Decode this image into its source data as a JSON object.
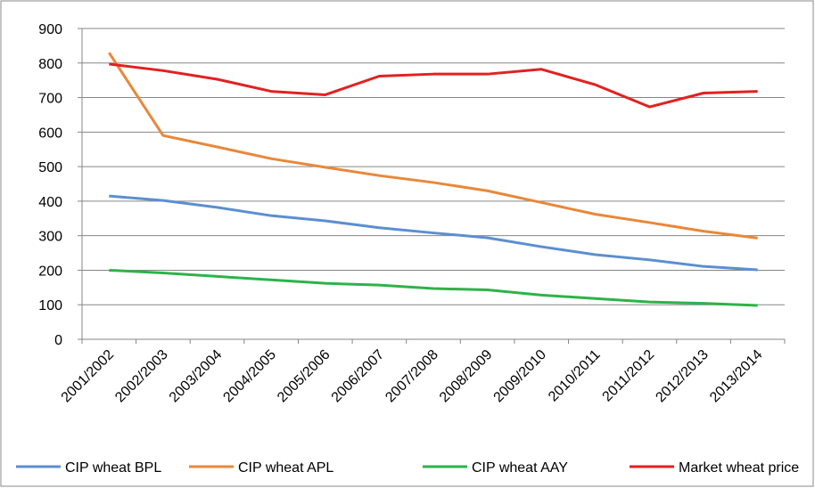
{
  "chart_data": {
    "type": "line",
    "categories": [
      "2001/2002",
      "2002/2003",
      "2003/2004",
      "2004/2005",
      "2005/2006",
      "2006/2007",
      "2007/2008",
      "2008/2009",
      "2009/2010",
      "2010/2011",
      "2011/2012",
      "2012/2013",
      "2013/2014"
    ],
    "series": [
      {
        "name": "CIP wheat BPL",
        "color": "#5b8fd0",
        "values": [
          415,
          402,
          382,
          358,
          343,
          323,
          308,
          294,
          268,
          245,
          230,
          211,
          201
        ]
      },
      {
        "name": "CIP wheat APL",
        "color": "#e8883a",
        "values": [
          830,
          590,
          557,
          523,
          498,
          474,
          454,
          430,
          396,
          362,
          338,
          313,
          293
        ]
      },
      {
        "name": "CIP wheat AAY",
        "color": "#2db34a",
        "values": [
          200,
          192,
          182,
          172,
          162,
          157,
          147,
          143,
          128,
          118,
          108,
          104,
          98
        ]
      },
      {
        "name": "Market wheat price",
        "color": "#e32020",
        "values": [
          797,
          778,
          753,
          718,
          708,
          762,
          768,
          768,
          782,
          737,
          673,
          713,
          718
        ]
      }
    ],
    "ylim": [
      0,
      900
    ],
    "yticks": [
      0,
      100,
      200,
      300,
      400,
      500,
      600,
      700,
      800,
      900
    ],
    "grid": true,
    "legend": "bottom"
  }
}
